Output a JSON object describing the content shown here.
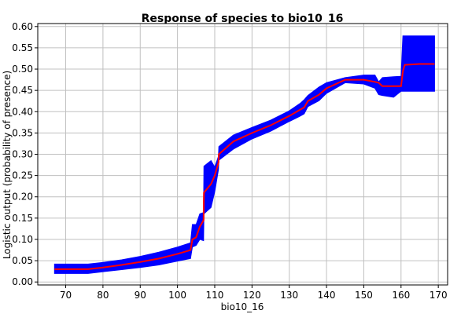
{
  "chart_data": {
    "type": "area",
    "title": "Response of species to bio10_16",
    "xlabel": "bio10_16",
    "ylabel": "Logistic output (probability of presence)",
    "xlim": [
      62.5,
      172.5
    ],
    "ylim": [
      -0.007,
      0.607
    ],
    "xticks": [
      70,
      80,
      90,
      100,
      110,
      120,
      130,
      140,
      150,
      160,
      170
    ],
    "yticks": [
      0.0,
      0.05,
      0.1,
      0.15,
      0.2,
      0.25,
      0.3,
      0.35,
      0.4,
      0.45,
      0.5,
      0.55,
      0.6
    ],
    "ytick_labels": [
      "0.00",
      "0.05",
      "0.10",
      "0.15",
      "0.20",
      "0.25",
      "0.30",
      "0.35",
      "0.40",
      "0.45",
      "0.50",
      "0.55",
      "0.60"
    ],
    "grid": true,
    "band_color": "#0000ff",
    "line_color": "#ff0000",
    "series": [
      {
        "x": [
          67,
          70,
          76,
          80,
          85,
          90,
          95,
          100,
          103.5,
          104,
          105,
          106,
          107,
          107.1,
          109,
          110,
          111,
          111.1,
          115,
          120,
          125,
          130,
          133,
          134,
          135,
          138,
          140,
          145,
          150,
          153,
          154,
          155,
          158,
          160,
          160.5,
          161,
          165,
          169
        ],
        "mean": [
          0.03,
          0.03,
          0.03,
          0.034,
          0.04,
          0.047,
          0.055,
          0.066,
          0.075,
          0.1,
          0.105,
          0.13,
          0.145,
          0.21,
          0.23,
          0.25,
          0.28,
          0.3,
          0.33,
          0.35,
          0.368,
          0.39,
          0.405,
          0.41,
          0.425,
          0.44,
          0.455,
          0.475,
          0.475,
          0.47,
          0.468,
          0.46,
          0.46,
          0.46,
          0.495,
          0.51,
          0.512,
          0.512
        ],
        "upper": [
          0.042,
          0.042,
          0.042,
          0.046,
          0.052,
          0.06,
          0.07,
          0.082,
          0.092,
          0.135,
          0.135,
          0.16,
          0.163,
          0.272,
          0.285,
          0.27,
          0.295,
          0.318,
          0.345,
          0.363,
          0.38,
          0.402,
          0.42,
          0.428,
          0.438,
          0.458,
          0.468,
          0.48,
          0.486,
          0.486,
          0.47,
          0.48,
          0.482,
          0.483,
          0.578,
          0.578,
          0.578,
          0.578
        ],
        "lower": [
          0.02,
          0.02,
          0.02,
          0.024,
          0.029,
          0.034,
          0.04,
          0.049,
          0.055,
          0.082,
          0.086,
          0.1,
          0.097,
          0.16,
          0.175,
          0.212,
          0.264,
          0.286,
          0.312,
          0.336,
          0.354,
          0.377,
          0.39,
          0.395,
          0.412,
          0.426,
          0.443,
          0.468,
          0.465,
          0.455,
          0.44,
          0.438,
          0.434,
          0.448,
          0.448,
          0.448,
          0.448,
          0.448
        ]
      }
    ]
  }
}
